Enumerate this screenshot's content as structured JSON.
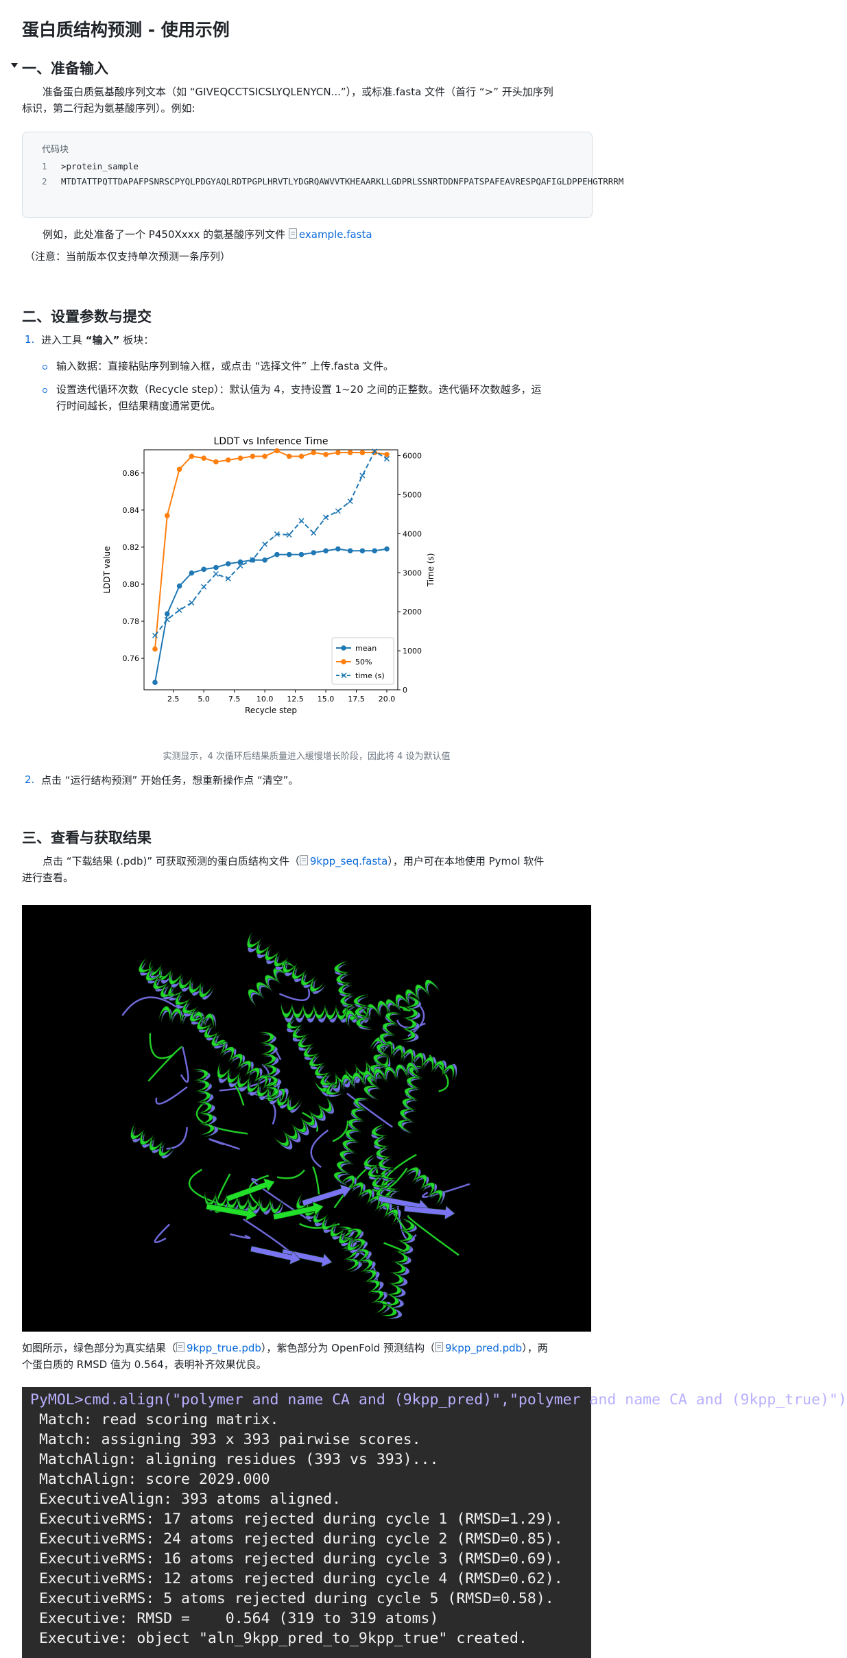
{
  "doc": {
    "title": "蛋白质结构预测 - 使用示例"
  },
  "section1": {
    "heading": "一、准备输入",
    "intro_line1": "准备蛋白质氨基酸序列文本（如 “GIVEQCCTSICSLYQLENYCN...”），或标准.fasta 文件（首行 “>” 开头加序列",
    "intro_line2": "标识，第二行起为氨基酸序列）。例如:",
    "code_title": "代码块",
    "code_lines": [
      {
        "n": "1",
        "text": ">protein_sample"
      },
      {
        "n": "2",
        "text": "MTDTATTPQTTDAPAFPSNRSCPYQLPDGYAQLRDTPGPLHRVTLYDGRQAWVVTKHEAARKLLGDPRLSSNRTDDNFPATSPAFEAVRESPQAFIGLDPPEHGTRRRM"
      }
    ],
    "example_prefix": "例如，此处准备了一个 P450Xxxx 的氨基酸序列文件",
    "example_file": "example.fasta",
    "note": "（注意：当前版本仅支持单次预测一条序列）"
  },
  "section2": {
    "heading": "二、设置参数与提交",
    "step1_num": "1.",
    "step1_prefix": "进入工具 ",
    "step1_bold": "“输入”",
    "step1_suffix": " 板块：",
    "bullet1": "输入数据：直接粘贴序列到输入框，或点击 “选择文件” 上传.fasta 文件。",
    "bullet2_line1": "设置迭代循环次数（Recycle step）：默认值为 4，支持设置 1~20 之间的正整数。迭代循环次数越多，运",
    "bullet2_line2": "行时间越长，但结果精度通常更优。",
    "caption": "实测显示，4 次循环后结果质量进入缓慢增长阶段，因此将 4 设为默认值",
    "step2_num": "2.",
    "step2_text": "点击 “运行结构预测” 开始任务，想重新操作点 “清空”。"
  },
  "chart_data": {
    "type": "line",
    "title": "LDDT vs Inference Time",
    "xlabel": "Recycle step",
    "ylabel": "LDDT value",
    "y2label": "Time (s)",
    "x": [
      1,
      2,
      3,
      4,
      5,
      6,
      7,
      8,
      9,
      10,
      11,
      12,
      13,
      14,
      15,
      16,
      17,
      18,
      19,
      20
    ],
    "xlim": [
      0.1,
      20.9
    ],
    "ylim": [
      0.743,
      0.8725
    ],
    "y2lim": [
      0,
      6150
    ],
    "xticks": [
      "2.5",
      "5.0",
      "7.5",
      "10.0",
      "12.5",
      "15.0",
      "17.5",
      "20.0"
    ],
    "xtick_values": [
      2.5,
      5.0,
      7.5,
      10.0,
      12.5,
      15.0,
      17.5,
      20.0
    ],
    "yticks": [
      "0.76",
      "0.78",
      "0.80",
      "0.82",
      "0.84",
      "0.86"
    ],
    "ytick_values": [
      0.76,
      0.78,
      0.8,
      0.82,
      0.84,
      0.86
    ],
    "y2ticks": [
      "0",
      "1000",
      "2000",
      "3000",
      "4000",
      "5000",
      "6000"
    ],
    "y2tick_values": [
      0,
      1000,
      2000,
      3000,
      4000,
      5000,
      6000
    ],
    "legend_position": "lower right",
    "series": [
      {
        "name": "mean",
        "axis": "left",
        "style": "solid-circle",
        "color": "#1f77b4",
        "values": [
          0.747,
          0.784,
          0.799,
          0.806,
          0.808,
          0.809,
          0.811,
          0.812,
          0.813,
          0.813,
          0.816,
          0.816,
          0.816,
          0.817,
          0.818,
          0.819,
          0.818,
          0.818,
          0.818,
          0.819
        ]
      },
      {
        "name": "50%",
        "axis": "left",
        "style": "solid-circle",
        "color": "#ff7f0e",
        "values": [
          0.765,
          0.837,
          0.862,
          0.869,
          0.868,
          0.866,
          0.867,
          0.868,
          0.869,
          0.869,
          0.872,
          0.869,
          0.869,
          0.871,
          0.87,
          0.871,
          0.871,
          0.871,
          0.871,
          0.87
        ]
      },
      {
        "name": "time (s)",
        "axis": "right",
        "style": "dashed-x",
        "color": "#1f77b4",
        "values": [
          1390,
          1800,
          2040,
          2230,
          2640,
          2970,
          2850,
          3180,
          3330,
          3730,
          3990,
          3970,
          4330,
          4020,
          4420,
          4580,
          4830,
          5490,
          6110,
          5920
        ]
      }
    ]
  },
  "section3": {
    "heading": "三、查看与获取结果",
    "intro_line1_prefix": "点击 “下载结果 (.pdb)” 可获取预测的蛋白质结构文件（",
    "intro_file": "9kpp_seq.fasta",
    "intro_line1_suffix": "），用户可在本地使用 Pymol 软件",
    "intro_line2": "进行查看。",
    "desc_prefix": "如图所示，绿色部分为真实结果（",
    "desc_file1": "9kpp_true.pdb",
    "desc_mid": "），紫色部分为 OpenFold 预测结构（",
    "desc_file2": "9kpp_pred.pdb",
    "desc_suffix": "），两",
    "desc_line2": "个蛋白质的 RMSD 值为 0.564，表明补齐效果优良。"
  },
  "protein_colors": {
    "true": "#22e02a",
    "pred": "#7b74f2"
  },
  "terminal": {
    "lines": [
      "PyMOL>cmd.align(\"polymer and name CA and (9kpp_pred)\",\"polymer and name CA and (9kpp_true)\")",
      " Match: read scoring matrix.",
      " Match: assigning 393 x 393 pairwise scores.",
      " MatchAlign: aligning residues (393 vs 393)...",
      " MatchAlign: score 2029.000",
      " ExecutiveAlign: 393 atoms aligned.",
      " ExecutiveRMS: 17 atoms rejected during cycle 1 (RMSD=1.29).",
      " ExecutiveRMS: 24 atoms rejected during cycle 2 (RMSD=0.85).",
      " ExecutiveRMS: 16 atoms rejected during cycle 3 (RMSD=0.69).",
      " ExecutiveRMS: 12 atoms rejected during cycle 4 (RMSD=0.62).",
      " ExecutiveRMS: 5 atoms rejected during cycle 5 (RMSD=0.58).",
      " Executive: RMSD =    0.564 (319 to 319 atoms)",
      " Executive: object \"aln_9kpp_pred_to_9kpp_true\" created."
    ]
  }
}
